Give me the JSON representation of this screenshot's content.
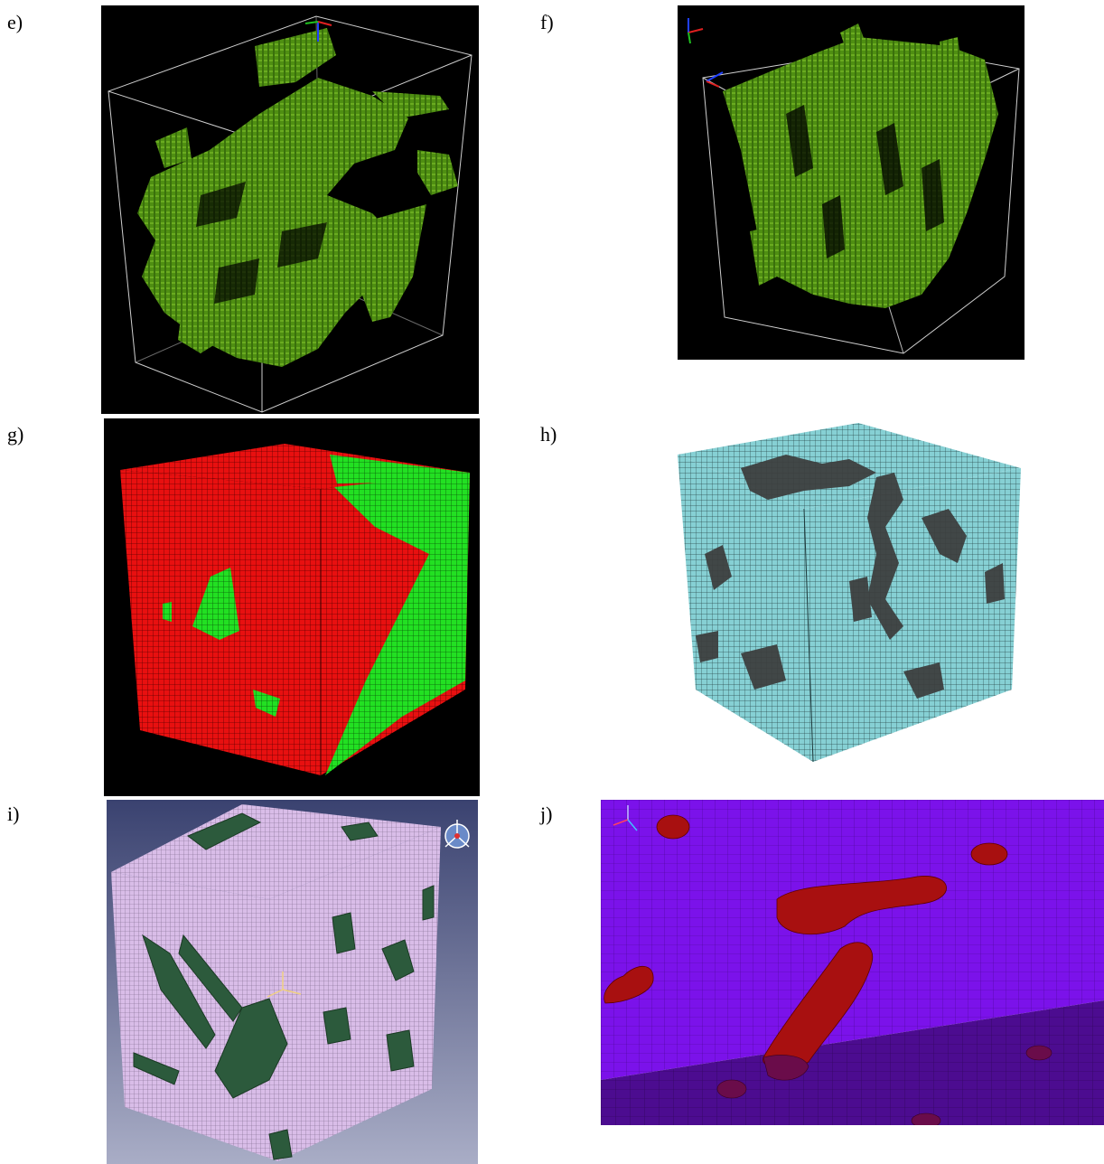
{
  "panels": [
    {
      "label": "e)",
      "render": "voxel-green-pores-wireframe-cube"
    },
    {
      "label": "f)",
      "render": "voxel-green-pores-wireframe-cube"
    },
    {
      "label": "g)",
      "render": "red-green-voxel-mesh-cube"
    },
    {
      "label": "h)",
      "render": "cyan-dark-mesh-cube"
    },
    {
      "label": "i)",
      "render": "lavender-green-mesh-cube"
    },
    {
      "label": "j)",
      "render": "purple-red-mesh-closeup"
    }
  ],
  "colors": {
    "green_voxel": "#4a8a10",
    "black_bg": "#000000",
    "red_mesh": "#e01010",
    "bright_green": "#22e022",
    "cyan_mesh": "#7fc8cc",
    "dark_phase": "#3a3a3a",
    "lavender": "#d8b8e8",
    "dark_green": "#2e5a3e",
    "purple": "#7a10e8",
    "dark_red": "#a01010"
  }
}
